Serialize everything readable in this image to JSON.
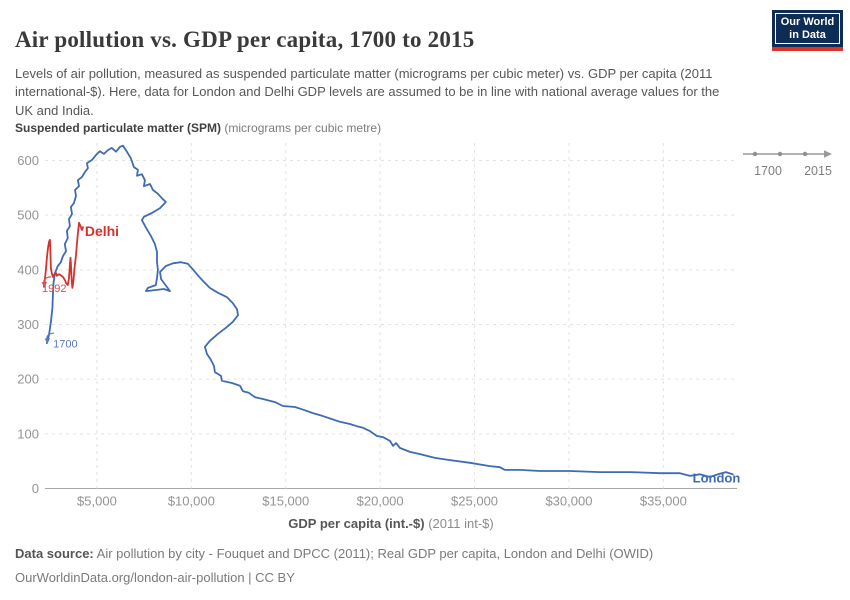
{
  "header": {
    "title": "Air pollution vs. GDP per capita, 1700 to 2015",
    "subtitle": "Levels of air pollution, measured as suspended particulate matter (micrograms per cubic meter) vs. GDP per capita (2011 international-$). Here, data for London and Delhi GDP levels are assumed to be in line with national average values for the UK and India.",
    "logo": {
      "line1": "Our World",
      "line2": "in Data",
      "bg_color": "#0d2c56",
      "accent_color": "#dc3428"
    }
  },
  "y_axis": {
    "title_bold": "Suspended particulate matter (SPM)",
    "title_unit": " (micrograms per cubic metre)",
    "ticks": [
      0,
      100,
      200,
      300,
      400,
      500,
      600
    ]
  },
  "x_axis": {
    "title_bold": "GDP per capita (int.-$)",
    "title_unit": " (2011 int-$)",
    "ticks": [
      {
        "value": 5000,
        "label": "$5,000"
      },
      {
        "value": 10000,
        "label": "$10,000"
      },
      {
        "value": 15000,
        "label": "$15,000"
      },
      {
        "value": 20000,
        "label": "$20,000"
      },
      {
        "value": 25000,
        "label": "$25,000"
      },
      {
        "value": 30000,
        "label": "$30,000"
      },
      {
        "value": 35000,
        "label": "$35,000"
      }
    ]
  },
  "timeline": {
    "start_label": "1700",
    "end_label": "2015"
  },
  "footer": {
    "source_bold": "Data source:",
    "source_text": " Air pollution by city - Fouquet and DPCC (2011); Real GDP per capita, London and Delhi (OWID)",
    "note": "OurWorldinData.org/london-air-pollution | CC BY"
  },
  "chart_data": {
    "type": "line",
    "title": "Air pollution vs. GDP per capita, 1700 to 2015",
    "xlabel": "GDP per capita (int.-$) (2011 int-$)",
    "ylabel": "Suspended particulate matter (SPM) (micrograms per cubic metre)",
    "xlim": [
      2250,
      38900
    ],
    "ylim": [
      0,
      632
    ],
    "grid": true,
    "grid_color": "#e2e2e2",
    "axis_color": "#a8a8a8",
    "tick_label_color": "#949494",
    "series": [
      {
        "name": "London",
        "color": "#3e6bb4",
        "label": {
          "text": "London",
          "gdp": 36550,
          "spm": 11,
          "size": 13
        },
        "start_label": {
          "text": "1700",
          "gdp": 2680,
          "spm": 258,
          "size": 11,
          "color": "#5b7ab8"
        },
        "points": [
          [
            2350,
            266
          ],
          [
            2460,
            281
          ],
          [
            2560,
            305
          ],
          [
            2640,
            330
          ],
          [
            2670,
            354
          ],
          [
            2700,
            376
          ],
          [
            2780,
            394
          ],
          [
            2930,
            407
          ],
          [
            3090,
            414
          ],
          [
            3200,
            425
          ],
          [
            3360,
            434
          ],
          [
            3300,
            447
          ],
          [
            3460,
            458
          ],
          [
            3410,
            471
          ],
          [
            3570,
            480
          ],
          [
            3520,
            493
          ],
          [
            3680,
            502
          ],
          [
            3620,
            515
          ],
          [
            3780,
            522
          ],
          [
            3890,
            535
          ],
          [
            3840,
            546
          ],
          [
            4050,
            553
          ],
          [
            3990,
            564
          ],
          [
            4210,
            570
          ],
          [
            4370,
            579
          ],
          [
            4520,
            586
          ],
          [
            4470,
            595
          ],
          [
            4740,
            601
          ],
          [
            4950,
            610
          ],
          [
            5160,
            617
          ],
          [
            5370,
            612
          ],
          [
            5580,
            619
          ],
          [
            5790,
            623
          ],
          [
            6010,
            616
          ],
          [
            6220,
            625
          ],
          [
            6380,
            627
          ],
          [
            6590,
            616
          ],
          [
            6800,
            604
          ],
          [
            6960,
            588
          ],
          [
            7170,
            583
          ],
          [
            7120,
            572
          ],
          [
            7380,
            575
          ],
          [
            7540,
            564
          ],
          [
            7490,
            553
          ],
          [
            7810,
            557
          ],
          [
            7970,
            546
          ],
          [
            8230,
            539
          ],
          [
            8440,
            531
          ],
          [
            8650,
            524
          ],
          [
            8340,
            513
          ],
          [
            7910,
            504
          ],
          [
            7490,
            497
          ],
          [
            7380,
            491
          ],
          [
            7600,
            477
          ],
          [
            7860,
            462
          ],
          [
            8070,
            447
          ],
          [
            8180,
            433
          ],
          [
            8180,
            414
          ],
          [
            8230,
            400
          ],
          [
            8180,
            385
          ],
          [
            8120,
            372
          ],
          [
            7700,
            367
          ],
          [
            7600,
            361
          ],
          [
            8070,
            363
          ],
          [
            8550,
            365
          ],
          [
            8870,
            361
          ],
          [
            8400,
            383
          ],
          [
            8340,
            396
          ],
          [
            8650,
            407
          ],
          [
            9030,
            412
          ],
          [
            9450,
            414
          ],
          [
            9820,
            411
          ],
          [
            10080,
            401
          ],
          [
            10350,
            390
          ],
          [
            10610,
            380
          ],
          [
            10980,
            367
          ],
          [
            11410,
            358
          ],
          [
            11890,
            350
          ],
          [
            12200,
            339
          ],
          [
            12420,
            328
          ],
          [
            12470,
            317
          ],
          [
            12200,
            305
          ],
          [
            11830,
            294
          ],
          [
            11410,
            283
          ],
          [
            10980,
            270
          ],
          [
            10720,
            259
          ],
          [
            10830,
            246
          ],
          [
            11040,
            235
          ],
          [
            11200,
            224
          ],
          [
            11250,
            213
          ],
          [
            11570,
            206
          ],
          [
            11620,
            197
          ],
          [
            12150,
            193
          ],
          [
            12570,
            188
          ],
          [
            12730,
            178
          ],
          [
            13050,
            175
          ],
          [
            13370,
            167
          ],
          [
            13740,
            164
          ],
          [
            14430,
            158
          ],
          [
            14850,
            151
          ],
          [
            15490,
            149
          ],
          [
            16020,
            143
          ],
          [
            16440,
            138
          ],
          [
            16920,
            133
          ],
          [
            17450,
            127
          ],
          [
            17870,
            122
          ],
          [
            18400,
            118
          ],
          [
            18770,
            114
          ],
          [
            19090,
            111
          ],
          [
            19460,
            105
          ],
          [
            19830,
            96
          ],
          [
            20150,
            94
          ],
          [
            20520,
            87
          ],
          [
            20680,
            78
          ],
          [
            20840,
            83
          ],
          [
            21050,
            74
          ],
          [
            21580,
            67
          ],
          [
            22110,
            63
          ],
          [
            22900,
            56
          ],
          [
            23700,
            52
          ],
          [
            24760,
            47
          ],
          [
            25810,
            41
          ],
          [
            26340,
            39
          ],
          [
            26610,
            34
          ],
          [
            27400,
            34
          ],
          [
            28460,
            32
          ],
          [
            30050,
            32
          ],
          [
            31640,
            30
          ],
          [
            33230,
            30
          ],
          [
            34820,
            28
          ],
          [
            35880,
            28
          ],
          [
            36410,
            23
          ],
          [
            36930,
            26
          ],
          [
            37460,
            21
          ],
          [
            37890,
            26
          ],
          [
            38310,
            30
          ],
          [
            38680,
            26
          ]
        ]
      },
      {
        "name": "Delhi",
        "color": "#d7312e",
        "label": {
          "text": "Delhi",
          "gdp": 4360,
          "spm": 462,
          "size": 14
        },
        "start_label": {
          "text": "1992",
          "gdp": 2090,
          "spm": 359,
          "size": 11,
          "color": "#d4504c"
        },
        "points": [
          [
            2190,
            369
          ],
          [
            2250,
            385
          ],
          [
            2300,
            400
          ],
          [
            2350,
            422
          ],
          [
            2410,
            440
          ],
          [
            2460,
            451
          ],
          [
            2510,
            455
          ],
          [
            2540,
            427
          ],
          [
            2560,
            403
          ],
          [
            2620,
            392
          ],
          [
            2670,
            387
          ],
          [
            2720,
            391
          ],
          [
            2830,
            394
          ],
          [
            2880,
            389
          ],
          [
            2990,
            392
          ],
          [
            3090,
            390
          ],
          [
            3200,
            387
          ],
          [
            3310,
            381
          ],
          [
            3360,
            376
          ],
          [
            3460,
            372
          ],
          [
            3520,
            385
          ],
          [
            3570,
            409
          ],
          [
            3600,
            422
          ],
          [
            3620,
            412
          ],
          [
            3650,
            390
          ],
          [
            3680,
            374
          ],
          [
            3700,
            367
          ],
          [
            3760,
            381
          ],
          [
            3810,
            403
          ],
          [
            3890,
            427
          ],
          [
            3940,
            447
          ],
          [
            3990,
            467
          ],
          [
            4050,
            486
          ],
          [
            4130,
            480
          ],
          [
            4210,
            473
          ],
          [
            4260,
            478
          ]
        ]
      }
    ]
  }
}
